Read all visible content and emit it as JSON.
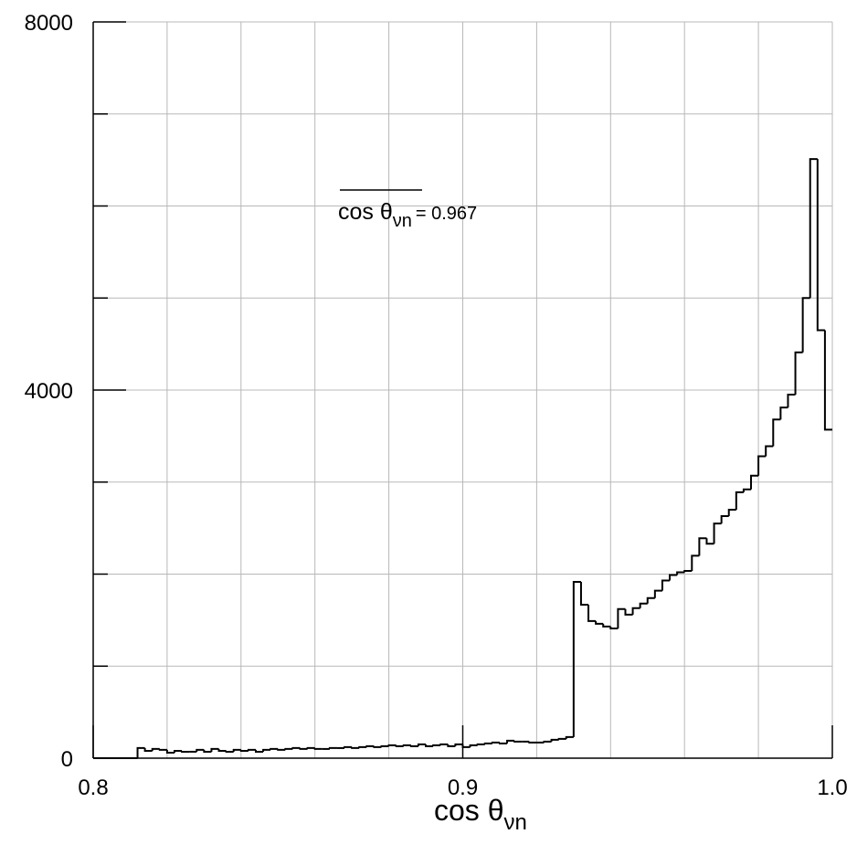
{
  "chart_data": {
    "type": "histogram",
    "xlabel": {
      "text": "cos θ",
      "subscript": "νn"
    },
    "annotation": {
      "text": "cos θ",
      "subscript": "νn",
      "suffix": "= 0.967"
    },
    "xlim": [
      0.8,
      1
    ],
    "ylim": [
      0,
      8000
    ],
    "xticks": [
      {
        "value": 0.8,
        "label": "0.8"
      },
      0.9,
      {
        "value": 1,
        "label": "1.0"
      }
    ],
    "x_minor_ticks": [
      0.82,
      0.84,
      0.86,
      0.88,
      0.92,
      0.94,
      0.96,
      0.98
    ],
    "yticks": [
      0,
      4000,
      8000
    ],
    "y_minor_ticks": [
      1000,
      2000,
      3000,
      5000,
      6000,
      7000
    ],
    "grid": true,
    "color": "#000000",
    "bins": [
      0.8,
      0.802,
      0.804,
      0.806,
      0.808,
      0.81,
      0.812,
      0.814,
      0.816,
      0.818,
      0.82,
      0.822,
      0.824,
      0.826,
      0.828,
      0.83,
      0.832,
      0.834,
      0.836,
      0.838,
      0.84,
      0.842,
      0.844,
      0.846,
      0.848,
      0.85,
      0.852,
      0.854,
      0.856,
      0.858,
      0.86,
      0.862,
      0.864,
      0.866,
      0.868,
      0.87,
      0.872,
      0.874,
      0.876,
      0.878,
      0.88,
      0.882,
      0.884,
      0.886,
      0.888,
      0.89,
      0.892,
      0.894,
      0.896,
      0.898,
      0.9,
      0.902,
      0.904,
      0.906,
      0.908,
      0.91,
      0.912,
      0.914,
      0.916,
      0.918,
      0.92,
      0.922,
      0.924,
      0.926,
      0.928,
      0.93,
      0.932,
      0.934,
      0.936,
      0.938,
      0.94,
      0.942,
      0.944,
      0.946,
      0.948,
      0.95,
      0.952,
      0.954,
      0.956,
      0.958,
      0.96,
      0.962,
      0.964,
      0.966,
      0.968,
      0.97,
      0.972,
      0.974,
      0.976,
      0.978,
      0.98,
      0.982,
      0.984,
      0.986,
      0.988,
      0.99,
      0.992,
      0.994,
      0.996,
      0.998,
      1
    ],
    "values": [
      0,
      0,
      0,
      0,
      0,
      0,
      110,
      80,
      100,
      90,
      60,
      80,
      70,
      70,
      90,
      70,
      100,
      80,
      70,
      90,
      80,
      90,
      70,
      90,
      100,
      90,
      100,
      110,
      100,
      110,
      100,
      100,
      110,
      110,
      120,
      110,
      120,
      130,
      120,
      130,
      140,
      130,
      140,
      130,
      150,
      130,
      140,
      150,
      130,
      150,
      120,
      140,
      150,
      160,
      170,
      160,
      190,
      180,
      180,
      170,
      170,
      180,
      200,
      210,
      230,
      1916,
      1667,
      1490,
      1460,
      1430,
      1410,
      1620,
      1560,
      1630,
      1680,
      1740,
      1820,
      1930,
      1990,
      2020,
      2035,
      2200,
      2390,
      2330,
      2550,
      2630,
      2700,
      2890,
      2920,
      3070,
      3280,
      3390,
      3680,
      3810,
      3950,
      4410,
      5000,
      6510,
      4650,
      3570
    ]
  }
}
